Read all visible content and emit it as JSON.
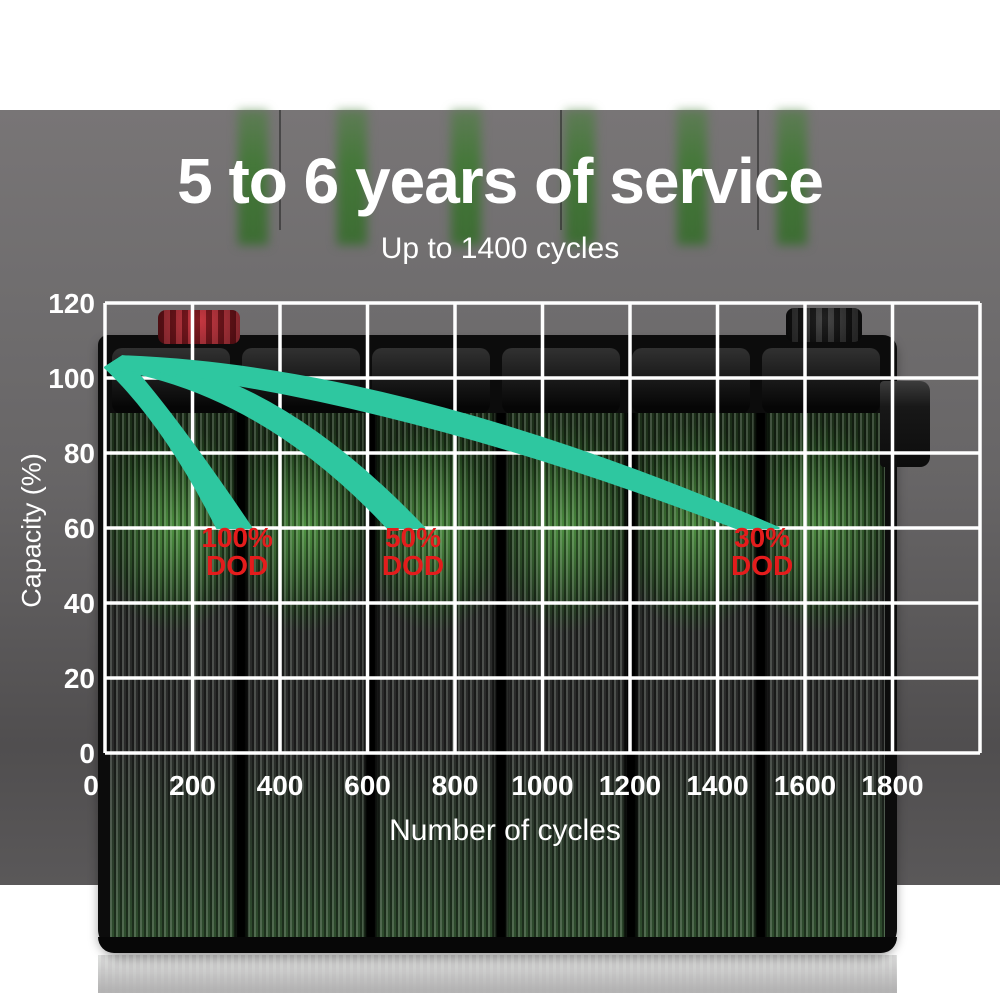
{
  "header": {
    "title": "5 to 6 years of service",
    "subtitle": "Up to 1400 cycles"
  },
  "chart_data": {
    "type": "area",
    "title": "5 to 6 years of service",
    "subtitle": "Up to 1400 cycles",
    "xlabel": "Number of cycles",
    "ylabel": "Capacity (%)",
    "xlim": [
      0,
      2000
    ],
    "ylim": [
      0,
      120
    ],
    "x_ticks": [
      0,
      200,
      400,
      600,
      800,
      1000,
      1200,
      1400,
      1600,
      1800
    ],
    "y_ticks": [
      0,
      20,
      40,
      60,
      80,
      100,
      120
    ],
    "grid": true,
    "series": [
      {
        "name": "100% DOD",
        "label_lines": [
          "100%",
          "DOD"
        ],
        "points": [
          [
            0,
            103
          ],
          [
            40,
            106
          ],
          [
            100,
            98
          ],
          [
            200,
            83
          ],
          [
            300,
            66
          ],
          [
            320,
            60
          ]
        ],
        "band": {
          "start": [
            0,
            102.8
          ],
          "peak": [
            40,
            105.8
          ],
          "top_ctrl": [
            150,
            92
          ],
          "end_top": [
            335,
            60
          ],
          "end_bottom": [
            256,
            60
          ],
          "bottom_ctrl": [
            135,
            88
          ]
        },
        "label_at": [
          302,
          55
        ]
      },
      {
        "name": "50% DOD",
        "label_lines": [
          "50%",
          "DOD"
        ],
        "points": [
          [
            0,
            103
          ],
          [
            40,
            106
          ],
          [
            200,
            100
          ],
          [
            400,
            92
          ],
          [
            600,
            76
          ],
          [
            700,
            60
          ]
        ],
        "band": {
          "start": [
            0,
            102.8
          ],
          "peak": [
            40,
            105.8
          ],
          "top_ctrl": [
            380,
            103
          ],
          "end_top": [
            730,
            60
          ],
          "end_bottom": [
            646,
            60
          ],
          "bottom_ctrl": [
            350,
            97
          ]
        },
        "label_at": [
          704,
          55
        ]
      },
      {
        "name": "30% DOD",
        "label_lines": [
          "30%",
          "DOD"
        ],
        "points": [
          [
            0,
            103
          ],
          [
            40,
            106
          ],
          [
            400,
            100
          ],
          [
            800,
            89
          ],
          [
            1200,
            76
          ],
          [
            1500,
            60
          ]
        ],
        "band": {
          "start": [
            0,
            102.8
          ],
          "peak": [
            40,
            105.8
          ],
          "top_ctrl": [
            690,
            103
          ],
          "end_top": [
            1540,
            60
          ],
          "end_bottom": [
            1442,
            60
          ],
          "bottom_ctrl": [
            640,
            96
          ]
        },
        "label_at": [
          1502,
          55
        ]
      }
    ],
    "colors": {
      "band": "#2ec7a0",
      "grid": "#ffffff",
      "tick_text": "#ffffff",
      "dod_label": "#e41c1c",
      "photo_bg": "#6f6d6e",
      "page_bg": "#ffffff"
    }
  }
}
